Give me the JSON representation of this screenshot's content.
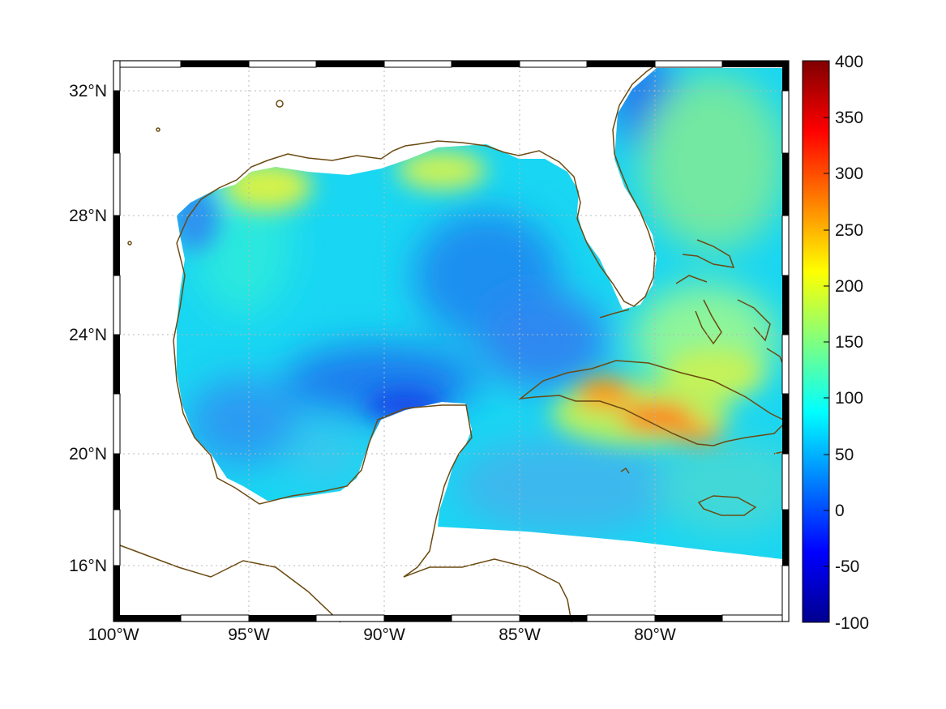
{
  "map": {
    "lat_labels": [
      "32°N",
      "28°N",
      "24°N",
      "20°N",
      "16°N"
    ],
    "lon_labels": [
      "100°W",
      "95°W",
      "90°W",
      "85°W",
      "80°W"
    ],
    "lat_values": [
      32,
      28,
      24,
      20,
      16
    ],
    "lon_values": [
      -100,
      -95,
      -90,
      -85,
      -80
    ],
    "lat_range": [
      14.2,
      32.9
    ],
    "lon_range": [
      -100,
      -75
    ],
    "coast_color": "#6b4a12",
    "grid": "dotted"
  },
  "colorbar": {
    "tick_labels": [
      "400",
      "350",
      "300",
      "250",
      "200",
      "150",
      "100",
      "50",
      "0",
      "-50",
      "-100"
    ],
    "range": [
      -100,
      400
    ],
    "colormap": "jet"
  },
  "field": {
    "background_level": 70,
    "notable_regions": [
      {
        "name": "Cuba central high",
        "peak": 280
      },
      {
        "name": "Louisiana shelf",
        "peak": 175
      },
      {
        "name": "Texas coast",
        "peak": 165
      },
      {
        "name": "Yucatan north low",
        "peak": 20
      }
    ]
  }
}
